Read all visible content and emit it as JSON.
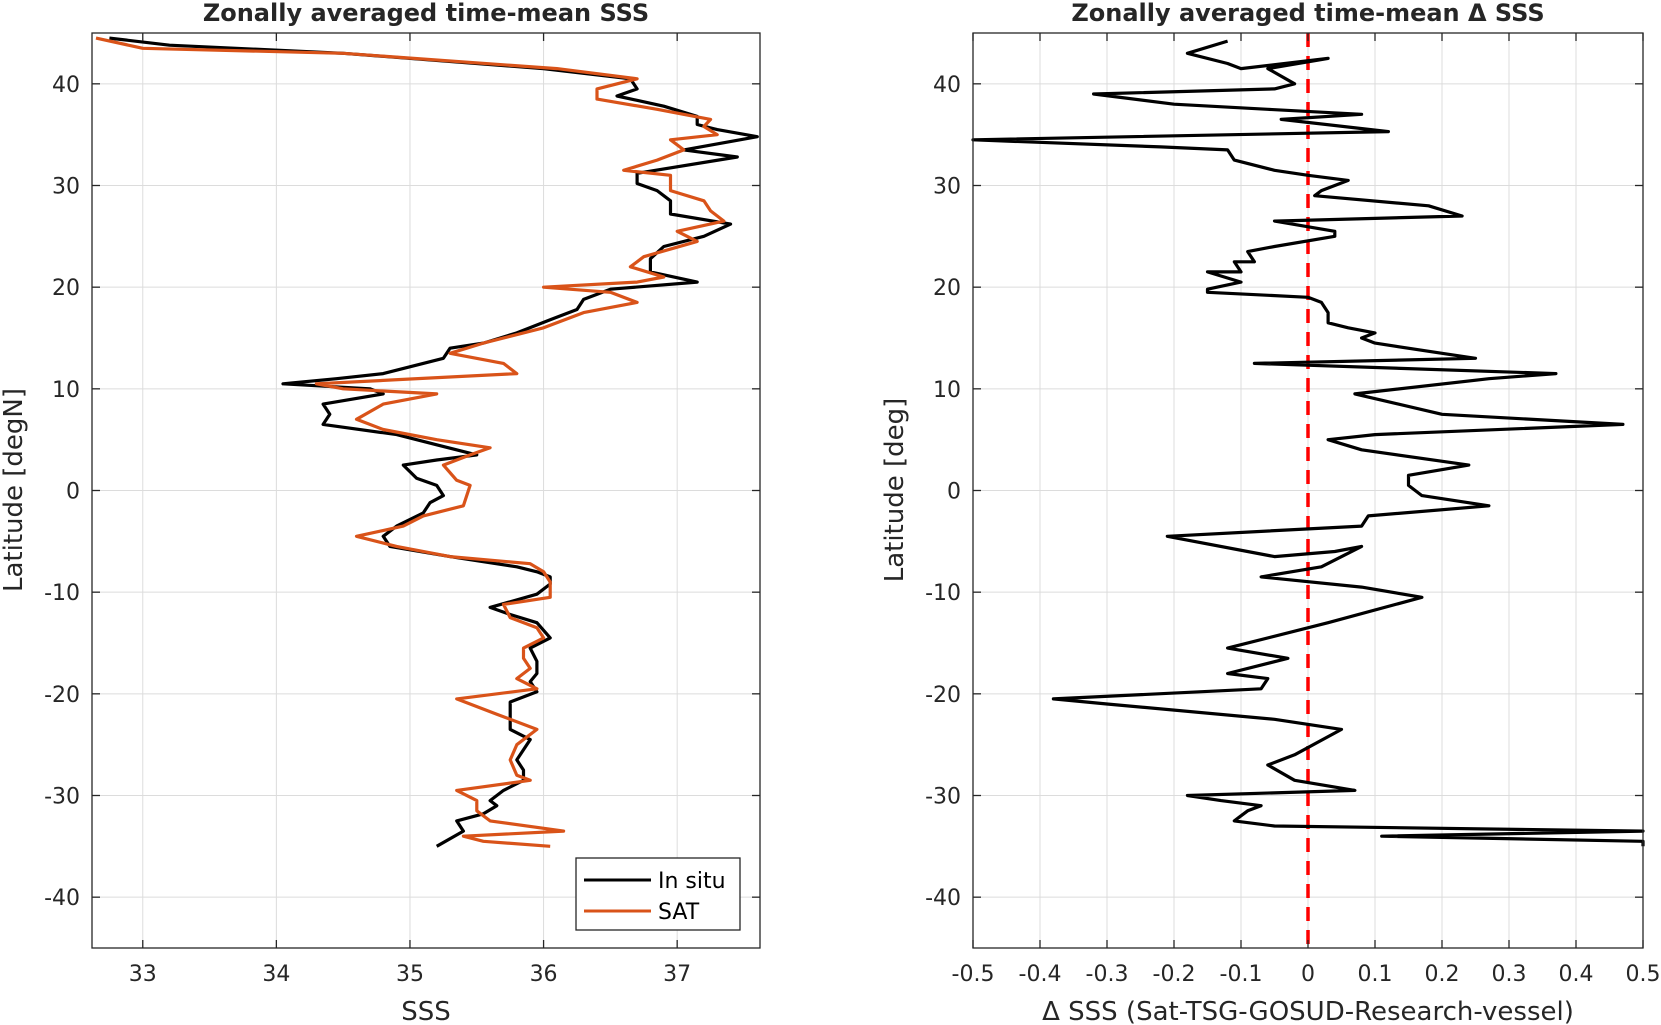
{
  "chart_data": [
    {
      "type": "line",
      "title": "Zonally averaged time-mean SSS",
      "xlabel": "SSS",
      "ylabel": "Latitude [degN]",
      "xlim": [
        32.62,
        37.62
      ],
      "ylim": [
        -45,
        45
      ],
      "xticks": [
        33,
        34,
        35,
        36,
        37
      ],
      "yticks": [
        -40,
        -30,
        -20,
        -10,
        0,
        10,
        20,
        30,
        40
      ],
      "grid": true,
      "legend_position": "bottom-right",
      "colors": {
        "In situ": "#000000",
        "SAT": "#D95319"
      },
      "series": [
        {
          "name": "In situ",
          "color": "#000000",
          "points": [
            [
              32.75,
              44.5
            ],
            [
              33.2,
              43.8
            ],
            [
              34.5,
              43.0
            ],
            [
              36.0,
              41.5
            ],
            [
              36.65,
              40.5
            ],
            [
              36.7,
              39.5
            ],
            [
              36.55,
              38.8
            ],
            [
              36.9,
              37.8
            ],
            [
              37.15,
              36.8
            ],
            [
              37.15,
              36.0
            ],
            [
              37.3,
              35.5
            ],
            [
              37.6,
              34.8
            ],
            [
              37.05,
              33.5
            ],
            [
              37.45,
              32.8
            ],
            [
              36.7,
              31.2
            ],
            [
              36.7,
              30.2
            ],
            [
              36.85,
              29.5
            ],
            [
              36.95,
              28.5
            ],
            [
              36.95,
              27.2
            ],
            [
              37.4,
              26.2
            ],
            [
              37.2,
              25.0
            ],
            [
              36.9,
              24.0
            ],
            [
              36.8,
              22.8
            ],
            [
              36.8,
              21.5
            ],
            [
              37.15,
              20.5
            ],
            [
              36.5,
              19.8
            ],
            [
              36.3,
              18.8
            ],
            [
              36.25,
              17.8
            ],
            [
              36.05,
              16.8
            ],
            [
              35.8,
              15.5
            ],
            [
              35.55,
              14.5
            ],
            [
              35.3,
              14.0
            ],
            [
              35.25,
              13.0
            ],
            [
              34.8,
              11.5
            ],
            [
              34.45,
              11.0
            ],
            [
              34.05,
              10.5
            ],
            [
              34.7,
              10.0
            ],
            [
              34.8,
              9.5
            ],
            [
              34.35,
              8.5
            ],
            [
              34.4,
              7.5
            ],
            [
              34.35,
              6.5
            ],
            [
              34.9,
              5.5
            ],
            [
              35.2,
              4.5
            ],
            [
              35.5,
              3.5
            ],
            [
              35.2,
              3.0
            ],
            [
              34.95,
              2.5
            ],
            [
              35.05,
              1.2
            ],
            [
              35.2,
              0.5
            ],
            [
              35.25,
              -0.5
            ],
            [
              35.15,
              -1.2
            ],
            [
              35.1,
              -2.2
            ],
            [
              34.9,
              -3.5
            ],
            [
              34.8,
              -4.5
            ],
            [
              34.85,
              -5.5
            ],
            [
              35.3,
              -6.5
            ],
            [
              35.8,
              -7.5
            ],
            [
              35.95,
              -8.0
            ],
            [
              36.05,
              -8.5
            ],
            [
              36.05,
              -9.2
            ],
            [
              35.95,
              -10.2
            ],
            [
              35.6,
              -11.5
            ],
            [
              35.75,
              -12.2
            ],
            [
              35.95,
              -13.0
            ],
            [
              36.05,
              -14.5
            ],
            [
              35.9,
              -15.5
            ],
            [
              35.95,
              -16.8
            ],
            [
              35.95,
              -18.0
            ],
            [
              35.9,
              -18.8
            ],
            [
              35.95,
              -19.8
            ],
            [
              35.75,
              -20.8
            ],
            [
              35.75,
              -22.0
            ],
            [
              35.75,
              -23.5
            ],
            [
              35.9,
              -24.5
            ],
            [
              35.8,
              -26.5
            ],
            [
              35.85,
              -27.5
            ],
            [
              35.85,
              -28.5
            ],
            [
              35.7,
              -29.5
            ],
            [
              35.6,
              -30.5
            ],
            [
              35.65,
              -31.0
            ],
            [
              35.55,
              -31.8
            ],
            [
              35.35,
              -32.5
            ],
            [
              35.4,
              -33.5
            ],
            [
              35.2,
              -35.0
            ]
          ]
        },
        {
          "name": "SAT",
          "color": "#D95319",
          "points": [
            [
              32.65,
              44.5
            ],
            [
              33.0,
              43.5
            ],
            [
              34.5,
              43.0
            ],
            [
              36.1,
              41.5
            ],
            [
              36.7,
              40.5
            ],
            [
              36.4,
              39.5
            ],
            [
              36.4,
              38.5
            ],
            [
              36.85,
              37.5
            ],
            [
              37.25,
              36.5
            ],
            [
              37.2,
              35.8
            ],
            [
              37.3,
              35.0
            ],
            [
              36.95,
              34.5
            ],
            [
              37.05,
              33.5
            ],
            [
              36.85,
              32.5
            ],
            [
              36.6,
              31.5
            ],
            [
              36.95,
              31.0
            ],
            [
              36.95,
              29.5
            ],
            [
              37.2,
              28.5
            ],
            [
              37.25,
              27.5
            ],
            [
              37.35,
              26.5
            ],
            [
              37.0,
              25.5
            ],
            [
              37.15,
              24.5
            ],
            [
              36.75,
              23.0
            ],
            [
              36.65,
              22.0
            ],
            [
              36.9,
              21.0
            ],
            [
              36.7,
              20.5
            ],
            [
              36.0,
              20.0
            ],
            [
              36.5,
              19.5
            ],
            [
              36.7,
              18.5
            ],
            [
              36.3,
              17.5
            ],
            [
              36.0,
              16.0
            ],
            [
              35.55,
              14.5
            ],
            [
              35.3,
              13.5
            ],
            [
              35.7,
              12.5
            ],
            [
              35.8,
              11.5
            ],
            [
              34.3,
              10.5
            ],
            [
              34.5,
              10.0
            ],
            [
              35.2,
              9.5
            ],
            [
              34.8,
              8.5
            ],
            [
              34.6,
              7.0
            ],
            [
              34.8,
              6.0
            ],
            [
              35.2,
              5.0
            ],
            [
              35.6,
              4.2
            ],
            [
              35.45,
              3.5
            ],
            [
              35.25,
              2.5
            ],
            [
              35.35,
              1.0
            ],
            [
              35.45,
              0.5
            ],
            [
              35.4,
              -1.5
            ],
            [
              35.1,
              -2.5
            ],
            [
              34.95,
              -3.5
            ],
            [
              34.6,
              -4.5
            ],
            [
              34.9,
              -5.5
            ],
            [
              35.3,
              -6.5
            ],
            [
              35.9,
              -7.2
            ],
            [
              36.0,
              -8.0
            ],
            [
              36.05,
              -9.0
            ],
            [
              36.05,
              -10.5
            ],
            [
              35.7,
              -11.2
            ],
            [
              35.75,
              -12.5
            ],
            [
              35.95,
              -13.5
            ],
            [
              36.0,
              -14.5
            ],
            [
              35.85,
              -15.5
            ],
            [
              35.85,
              -16.5
            ],
            [
              35.9,
              -17.5
            ],
            [
              35.8,
              -18.5
            ],
            [
              35.95,
              -19.5
            ],
            [
              35.35,
              -20.5
            ],
            [
              35.65,
              -22.0
            ],
            [
              35.95,
              -23.5
            ],
            [
              35.8,
              -25.0
            ],
            [
              35.75,
              -26.5
            ],
            [
              35.8,
              -28.0
            ],
            [
              35.9,
              -28.5
            ],
            [
              35.35,
              -29.5
            ],
            [
              35.5,
              -30.5
            ],
            [
              35.5,
              -31.5
            ],
            [
              35.6,
              -32.5
            ],
            [
              36.15,
              -33.5
            ],
            [
              35.4,
              -34.0
            ],
            [
              35.55,
              -34.5
            ],
            [
              36.05,
              -35.0
            ]
          ]
        }
      ]
    },
    {
      "type": "line",
      "title": "Zonally averaged time-mean Δ SSS",
      "xlabel": "Δ SSS (Sat-TSG-GOSUD-Research-vessel)",
      "ylabel": "Latitude [deg]",
      "xlim": [
        -0.5,
        0.5
      ],
      "ylim": [
        -45,
        45
      ],
      "xticks": [
        -0.5,
        -0.4,
        -0.3,
        -0.2,
        -0.1,
        0,
        0.1,
        0.2,
        0.3,
        0.4,
        0.5
      ],
      "xticklabels": [
        "-0.5",
        "-0.4",
        "-0.3",
        "-0.2",
        "-0.1",
        "0",
        "0.1",
        "0.2",
        "0.3",
        "0.4",
        "0.5"
      ],
      "yticks": [
        -40,
        -30,
        -20,
        -10,
        0,
        10,
        20,
        30,
        40
      ],
      "grid": true,
      "reference_line": {
        "x": 0,
        "style": "dashed",
        "color": "#FF0000"
      },
      "series": [
        {
          "color": "#000000",
          "points": [
            [
              -0.12,
              44.2
            ],
            [
              -0.18,
              43.0
            ],
            [
              -0.12,
              42.0
            ],
            [
              -0.1,
              41.5
            ],
            [
              0.03,
              42.5
            ],
            [
              -0.06,
              41.5
            ],
            [
              -0.02,
              40.0
            ],
            [
              -0.05,
              39.5
            ],
            [
              -0.32,
              39.0
            ],
            [
              -0.2,
              38.0
            ],
            [
              -0.06,
              37.5
            ],
            [
              0.08,
              37.0
            ],
            [
              -0.04,
              36.5
            ],
            [
              0.12,
              35.3
            ],
            [
              -0.5,
              34.5
            ],
            [
              -0.22,
              33.8
            ],
            [
              -0.12,
              33.5
            ],
            [
              -0.11,
              32.5
            ],
            [
              -0.05,
              31.5
            ],
            [
              0.0,
              31.0
            ],
            [
              0.06,
              30.5
            ],
            [
              0.02,
              29.5
            ],
            [
              0.01,
              29.0
            ],
            [
              0.18,
              28.0
            ],
            [
              0.23,
              27.0
            ],
            [
              -0.05,
              26.5
            ],
            [
              0.04,
              25.5
            ],
            [
              0.04,
              25.0
            ],
            [
              -0.05,
              24.0
            ],
            [
              -0.09,
              23.5
            ],
            [
              -0.08,
              22.5
            ],
            [
              -0.11,
              22.5
            ],
            [
              -0.1,
              21.5
            ],
            [
              -0.15,
              21.5
            ],
            [
              -0.1,
              20.5
            ],
            [
              -0.15,
              19.8
            ],
            [
              -0.15,
              19.5
            ],
            [
              0.0,
              19.0
            ],
            [
              0.02,
              18.5
            ],
            [
              0.03,
              17.5
            ],
            [
              0.03,
              16.5
            ],
            [
              0.06,
              16.0
            ],
            [
              0.1,
              15.5
            ],
            [
              0.08,
              15.0
            ],
            [
              0.1,
              14.5
            ],
            [
              0.2,
              13.5
            ],
            [
              0.25,
              13.0
            ],
            [
              -0.08,
              12.5
            ],
            [
              0.37,
              11.5
            ],
            [
              0.27,
              11.0
            ],
            [
              0.07,
              9.5
            ],
            [
              0.2,
              7.5
            ],
            [
              0.47,
              6.5
            ],
            [
              0.1,
              5.5
            ],
            [
              0.03,
              5.0
            ],
            [
              0.08,
              4.0
            ],
            [
              0.24,
              2.5
            ],
            [
              0.15,
              1.5
            ],
            [
              0.15,
              0.5
            ],
            [
              0.17,
              -0.5
            ],
            [
              0.27,
              -1.5
            ],
            [
              0.09,
              -2.5
            ],
            [
              0.08,
              -3.5
            ],
            [
              -0.21,
              -4.5
            ],
            [
              -0.05,
              -6.5
            ],
            [
              0.04,
              -6.0
            ],
            [
              0.08,
              -5.5
            ],
            [
              0.02,
              -7.5
            ],
            [
              -0.07,
              -8.5
            ],
            [
              0.08,
              -9.5
            ],
            [
              0.17,
              -10.5
            ],
            [
              0.03,
              -13.0
            ],
            [
              -0.12,
              -15.5
            ],
            [
              -0.03,
              -16.5
            ],
            [
              -0.12,
              -18.0
            ],
            [
              -0.06,
              -18.5
            ],
            [
              -0.07,
              -19.5
            ],
            [
              -0.38,
              -20.5
            ],
            [
              -0.3,
              -21.0
            ],
            [
              -0.05,
              -22.5
            ],
            [
              0.05,
              -23.5
            ],
            [
              -0.02,
              -26.0
            ],
            [
              -0.06,
              -27.0
            ],
            [
              -0.02,
              -28.5
            ],
            [
              0.07,
              -29.5
            ],
            [
              -0.18,
              -30.0
            ],
            [
              -0.13,
              -30.5
            ],
            [
              -0.07,
              -31.0
            ],
            [
              -0.09,
              -31.5
            ],
            [
              -0.1,
              -32.0
            ],
            [
              -0.11,
              -32.5
            ],
            [
              -0.05,
              -33.0
            ],
            [
              0.5,
              -33.5
            ],
            [
              0.11,
              -34.0
            ],
            [
              0.5,
              -34.5
            ],
            [
              0.5,
              -35.0
            ]
          ]
        }
      ]
    }
  ]
}
